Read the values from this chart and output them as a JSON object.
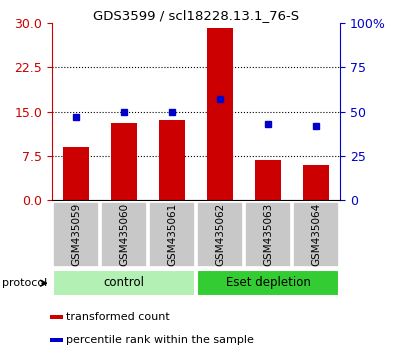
{
  "title": "GDS3599 / scl18228.13.1_76-S",
  "categories": [
    "GSM435059",
    "GSM435060",
    "GSM435061",
    "GSM435062",
    "GSM435063",
    "GSM435064"
  ],
  "bar_values": [
    9.0,
    13.0,
    13.5,
    29.2,
    6.8,
    6.0
  ],
  "dot_values_pct": [
    47,
    50,
    50,
    57,
    43,
    42
  ],
  "left_ylim": [
    0,
    30
  ],
  "left_yticks": [
    0,
    7.5,
    15,
    22.5,
    30
  ],
  "right_ylim": [
    0,
    100
  ],
  "right_yticks": [
    0,
    25,
    50,
    75,
    100
  ],
  "bar_color": "#cc0000",
  "dot_color": "#0000cc",
  "bar_width": 0.55,
  "groups": [
    {
      "label": "control",
      "indices": [
        0,
        1,
        2
      ],
      "color": "#b3f0b3"
    },
    {
      "label": "Eset depletion",
      "indices": [
        3,
        4,
        5
      ],
      "color": "#33cc33"
    }
  ],
  "protocol_label": "protocol",
  "legend_items": [
    {
      "color": "#cc0000",
      "label": "transformed count"
    },
    {
      "color": "#0000cc",
      "label": "percentile rank within the sample"
    }
  ],
  "left_tick_color": "#cc0000",
  "right_tick_color": "#0000cc",
  "tick_label_bg": "#c8c8c8",
  "tick_label_fontsize": 7.5,
  "group_fontsize": 8.5,
  "legend_fontsize": 8
}
